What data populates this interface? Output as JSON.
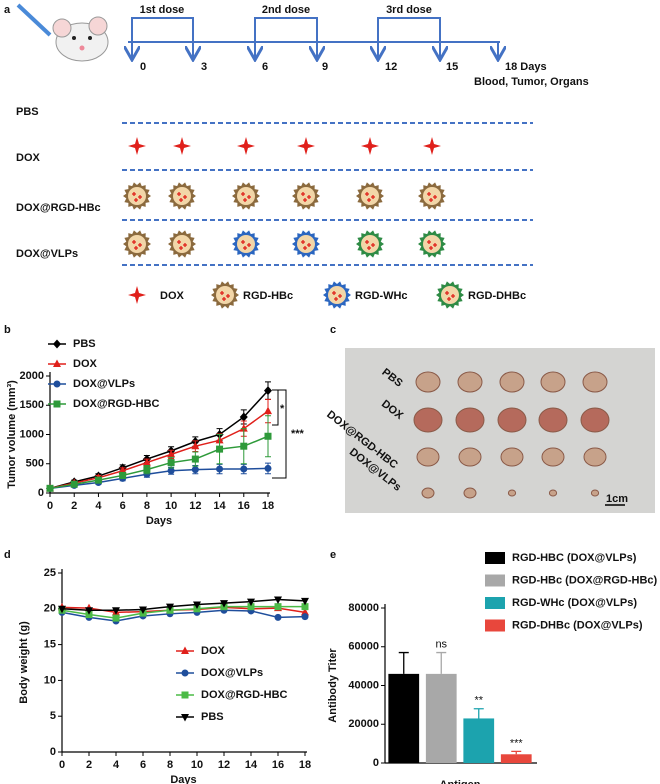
{
  "panel_labels": [
    "a",
    "b",
    "c",
    "d",
    "e"
  ],
  "schedule": {
    "doses": [
      "1st dose",
      "2nd dose",
      "3rd dose"
    ],
    "days": [
      "0",
      "3",
      "6",
      "9",
      "12",
      "15",
      "18 Days"
    ],
    "endpoint": "Blood, Tumor, Organs"
  },
  "groups": [
    "PBS",
    "DOX",
    "DOX@RGD-HBc",
    "DOX@VLPs"
  ],
  "legend": [
    "DOX",
    "RGD-HBc",
    "RGD-WHc",
    "RGD-DHBc"
  ],
  "photo": {
    "labels": [
      "PBS",
      "DOX",
      "DOX@RGD-HBC",
      "DOX@VLPs"
    ],
    "scale": "1cm"
  },
  "chart_data": [
    {
      "type": "line",
      "ylabel": "Tumor volume (mm³)",
      "xlabel": "Days",
      "x": [
        0,
        2,
        4,
        6,
        8,
        10,
        12,
        14,
        16,
        18
      ],
      "xlim": [
        0,
        18
      ],
      "xticks": [
        0,
        2,
        4,
        6,
        8,
        10,
        12,
        14,
        16,
        18
      ],
      "ylim": [
        0,
        2000
      ],
      "yticks": [
        0,
        500,
        1000,
        1500,
        2000
      ],
      "annotations": [
        "*",
        "***"
      ],
      "series": [
        {
          "name": "PBS",
          "color": "#000000",
          "marker": "diamond",
          "values": [
            80,
            190,
            290,
            430,
            580,
            720,
            880,
            1000,
            1300,
            1750
          ],
          "errors": [
            20,
            30,
            40,
            50,
            60,
            70,
            80,
            100,
            120,
            150
          ]
        },
        {
          "name": "DOX",
          "color": "#e0201b",
          "marker": "triangle",
          "values": [
            80,
            170,
            260,
            380,
            520,
            660,
            800,
            900,
            1100,
            1400
          ],
          "errors": [
            20,
            30,
            40,
            50,
            60,
            70,
            90,
            110,
            130,
            200
          ]
        },
        {
          "name": "DOX@VLPs",
          "color": "#1f4e9c",
          "marker": "circle",
          "values": [
            80,
            130,
            180,
            250,
            320,
            380,
            400,
            410,
            410,
            420
          ],
          "errors": [
            20,
            25,
            30,
            40,
            50,
            60,
            70,
            80,
            80,
            90
          ]
        },
        {
          "name": "DOX@RGD-HBC",
          "color": "#2e9a3a",
          "marker": "square",
          "values": [
            80,
            150,
            220,
            300,
            400,
            520,
            580,
            750,
            800,
            970
          ],
          "errors": [
            20,
            30,
            40,
            50,
            70,
            90,
            120,
            250,
            300,
            350
          ]
        }
      ]
    },
    {
      "type": "line",
      "ylabel": "Body weight (g)",
      "xlabel": "Days",
      "x": [
        0,
        2,
        4,
        6,
        8,
        10,
        12,
        14,
        16,
        18
      ],
      "xlim": [
        0,
        18
      ],
      "xticks": [
        0,
        2,
        4,
        6,
        8,
        10,
        12,
        14,
        16,
        18
      ],
      "ylim": [
        0,
        25
      ],
      "yticks": [
        0,
        5,
        10,
        15,
        20,
        25
      ],
      "series": [
        {
          "name": "DOX",
          "color": "#e0201b",
          "marker": "triangle",
          "values": [
            20.2,
            20.1,
            19.5,
            19.6,
            19.8,
            19.9,
            20.2,
            20.0,
            20.1,
            19.5
          ]
        },
        {
          "name": "DOX@VLPs",
          "color": "#1f4e9c",
          "marker": "circle",
          "values": [
            19.5,
            18.8,
            18.3,
            19.0,
            19.3,
            19.5,
            19.8,
            19.7,
            18.8,
            18.9
          ]
        },
        {
          "name": "DOX@RGD-HBC",
          "color": "#4cbb47",
          "marker": "square",
          "values": [
            19.8,
            19.2,
            18.7,
            19.4,
            19.8,
            20.0,
            20.3,
            20.3,
            20.3,
            20.3
          ]
        },
        {
          "name": "PBS",
          "color": "#000000",
          "marker": "invtriangle",
          "values": [
            20.0,
            19.8,
            19.8,
            19.9,
            20.3,
            20.6,
            20.8,
            21.0,
            21.3,
            21.1
          ]
        }
      ]
    },
    {
      "type": "bar",
      "ylabel": "Antibody Titer",
      "xlabel": "Antigen",
      "ylim": [
        0,
        80000
      ],
      "yticks": [
        0,
        20000,
        40000,
        60000,
        80000
      ],
      "series": [
        {
          "name": "RGD-HBC  (DOX@VLPs)",
          "color": "#000000",
          "values": [
            46000
          ],
          "errors": [
            11000
          ]
        },
        {
          "name": "RGD-HBc (DOX@RGD-HBc)",
          "color": "#a8a8a8",
          "values": [
            46000
          ],
          "errors": [
            11000
          ],
          "value_labels": [
            "ns"
          ]
        },
        {
          "name": "RGD-WHc (DOX@VLPs)",
          "color": "#1ca3ae",
          "values": [
            23000
          ],
          "errors": [
            5000
          ],
          "value_labels": [
            "**"
          ]
        },
        {
          "name": "RGD-DHBc (DOX@VLPs)",
          "color": "#e8473c",
          "values": [
            4500
          ],
          "errors": [
            1500
          ],
          "value_labels": [
            "***"
          ]
        }
      ]
    }
  ]
}
